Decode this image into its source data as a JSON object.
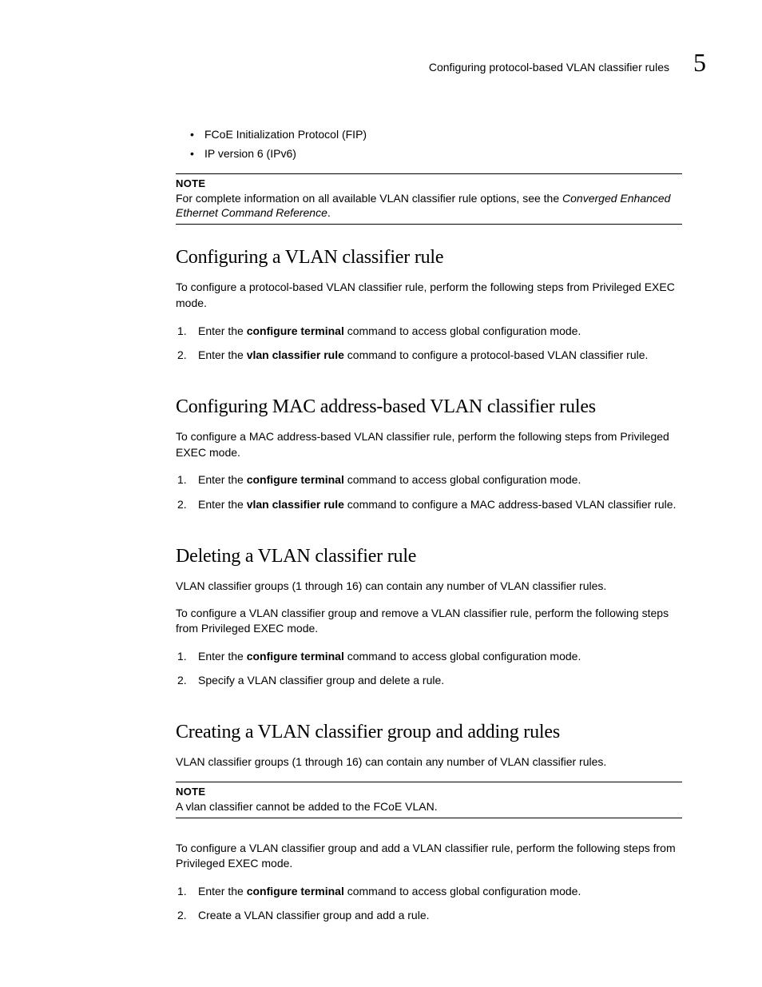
{
  "header": {
    "running_head": "Configuring protocol-based VLAN classifier rules",
    "chapter_number": "5"
  },
  "bullets": [
    "FCoE Initialization Protocol (FIP)",
    "IP version 6 (IPv6)"
  ],
  "note1": {
    "label": "NOTE",
    "body_prefix": "For complete information on all available VLAN classifier rule options, see the ",
    "body_italic": "Converged Enhanced Ethernet Command Reference",
    "body_suffix": "."
  },
  "sections": {
    "s1": {
      "heading": "Configuring a VLAN classifier rule",
      "intro": "To configure a protocol-based VLAN classifier rule, perform the following steps from Privileged EXEC mode.",
      "steps": [
        {
          "pre": "Enter the ",
          "cmd": "configure terminal",
          "post": " command to access global configuration mode."
        },
        {
          "pre": "Enter the ",
          "cmd": "vlan classifier rule",
          "post": " command to configure a protocol-based VLAN classifier rule."
        }
      ]
    },
    "s2": {
      "heading": "Configuring MAC address-based VLAN classifier rules",
      "intro": "To configure a MAC address-based VLAN classifier rule, perform the following steps from Privileged EXEC mode.",
      "steps": [
        {
          "pre": "Enter the ",
          "cmd": "configure terminal",
          "post": " command to access global configuration mode."
        },
        {
          "pre": "Enter the ",
          "cmd": "vlan classifier rule",
          "post": " command to configure a MAC address-based VLAN classifier rule."
        }
      ]
    },
    "s3": {
      "heading": "Deleting a VLAN classifier rule",
      "intro1": "VLAN classifier groups (1 through 16) can contain any number of VLAN classifier rules.",
      "intro2": "To configure a VLAN classifier group and remove a VLAN classifier rule, perform the following steps from Privileged EXEC mode.",
      "steps": [
        {
          "pre": "Enter the ",
          "cmd": "configure terminal",
          "post": " command to access global configuration mode."
        },
        {
          "plain": "Specify a VLAN classifier group and delete a rule."
        }
      ]
    },
    "s4": {
      "heading": "Creating a VLAN classifier group and adding rules",
      "intro1": "VLAN classifier groups (1 through 16) can contain any number of VLAN classifier rules.",
      "note": {
        "label": "NOTE",
        "body": "A vlan classifier cannot be added to the FCoE VLAN."
      },
      "intro2": "To configure a VLAN classifier group and add a VLAN classifier rule, perform the following steps from Privileged EXEC mode.",
      "steps": [
        {
          "pre": "Enter the ",
          "cmd": "configure terminal",
          "post": " command to access global configuration mode."
        },
        {
          "plain": "Create a VLAN classifier group and add a rule."
        }
      ]
    }
  }
}
